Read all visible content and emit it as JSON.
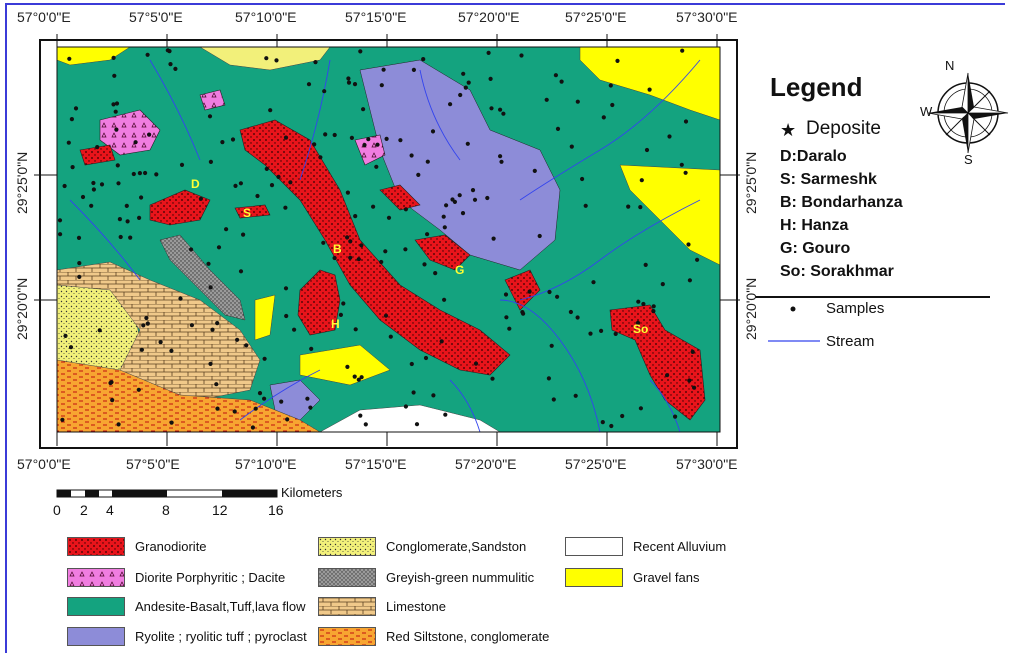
{
  "map": {
    "top_longitudes": [
      "57°0'0\"E",
      "57°5'0\"E",
      "57°10'0\"E",
      "57°15'0\"E",
      "57°20'0\"E",
      "57°25'0\"E",
      "57°30'0\"E"
    ],
    "bottom_longitudes": [
      "57°0'0\"E",
      "57°5'0\"E",
      "57°10'0\"E",
      "57°15'0\"E",
      "57°20'0\"E",
      "57°25'0\"E",
      "57°30'0\"E"
    ],
    "left_latitudes": [
      "29°25'0\"N",
      "29°20'0\"N"
    ],
    "right_latitudes": [
      "29°25'0\"N",
      "29°20'0\"N"
    ],
    "deposit_labels": [
      "D",
      "S",
      "B",
      "G",
      "H",
      "So"
    ],
    "colors": {
      "granodiorite": "#e8141b",
      "diorite": "#f07de0",
      "andesite": "#14a37f",
      "ryolite": "#8d8cd8",
      "conglomerate": "#f2f07a",
      "greyish": "#9a9a9a",
      "limestone": "#f0c98a",
      "red_siltstone": "#f7a531",
      "recent_alluvium": "#ffffff",
      "gravel_fans": "#ffff00",
      "stream": "#3344ee"
    }
  },
  "legend": {
    "title": "Legend",
    "deposit_label": "Deposite",
    "deposits": [
      "D:Daralo",
      "S: Sarmeshk",
      "B: Bondarhanza",
      "H: Hanza",
      "G: Gouro",
      "So: Sorakhmar"
    ],
    "samples_label": "Samples",
    "stream_label": "Stream",
    "compass": {
      "n": "N",
      "s": "S",
      "w": "W"
    }
  },
  "scale": {
    "unit": "Kilometers",
    "ticks": [
      "0",
      "2",
      "4",
      "8",
      "12",
      "16"
    ]
  },
  "geology_legend": [
    {
      "label": "Granodiorite",
      "color": "#e8141b",
      "pattern": "dots-dark"
    },
    {
      "label": "Diorite Porphyritic ; Dacite",
      "color": "#f07de0",
      "pattern": "triangles"
    },
    {
      "label": "Andesite-Basalt,Tuff,lava flow",
      "color": "#14a37f",
      "pattern": "none"
    },
    {
      "label": "Ryolite ; ryolitic tuff ; pyroclast",
      "color": "#8d8cd8",
      "pattern": "none"
    },
    {
      "label": "Conglomerate,Sandston",
      "color": "#f2f07a",
      "pattern": "dots"
    },
    {
      "label": "Greyish-green nummulitic",
      "color": "#9a9a9a",
      "pattern": "dots-fine"
    },
    {
      "label": "Limestone",
      "color": "#f0c98a",
      "pattern": "bricks"
    },
    {
      "label": "Red Siltstone, conglomerate",
      "color": "#f7a531",
      "pattern": "dashes"
    },
    {
      "label": "Recent Alluvium",
      "color": "#ffffff",
      "pattern": "none"
    },
    {
      "label": "Gravel fans",
      "color": "#ffff00",
      "pattern": "none"
    }
  ]
}
